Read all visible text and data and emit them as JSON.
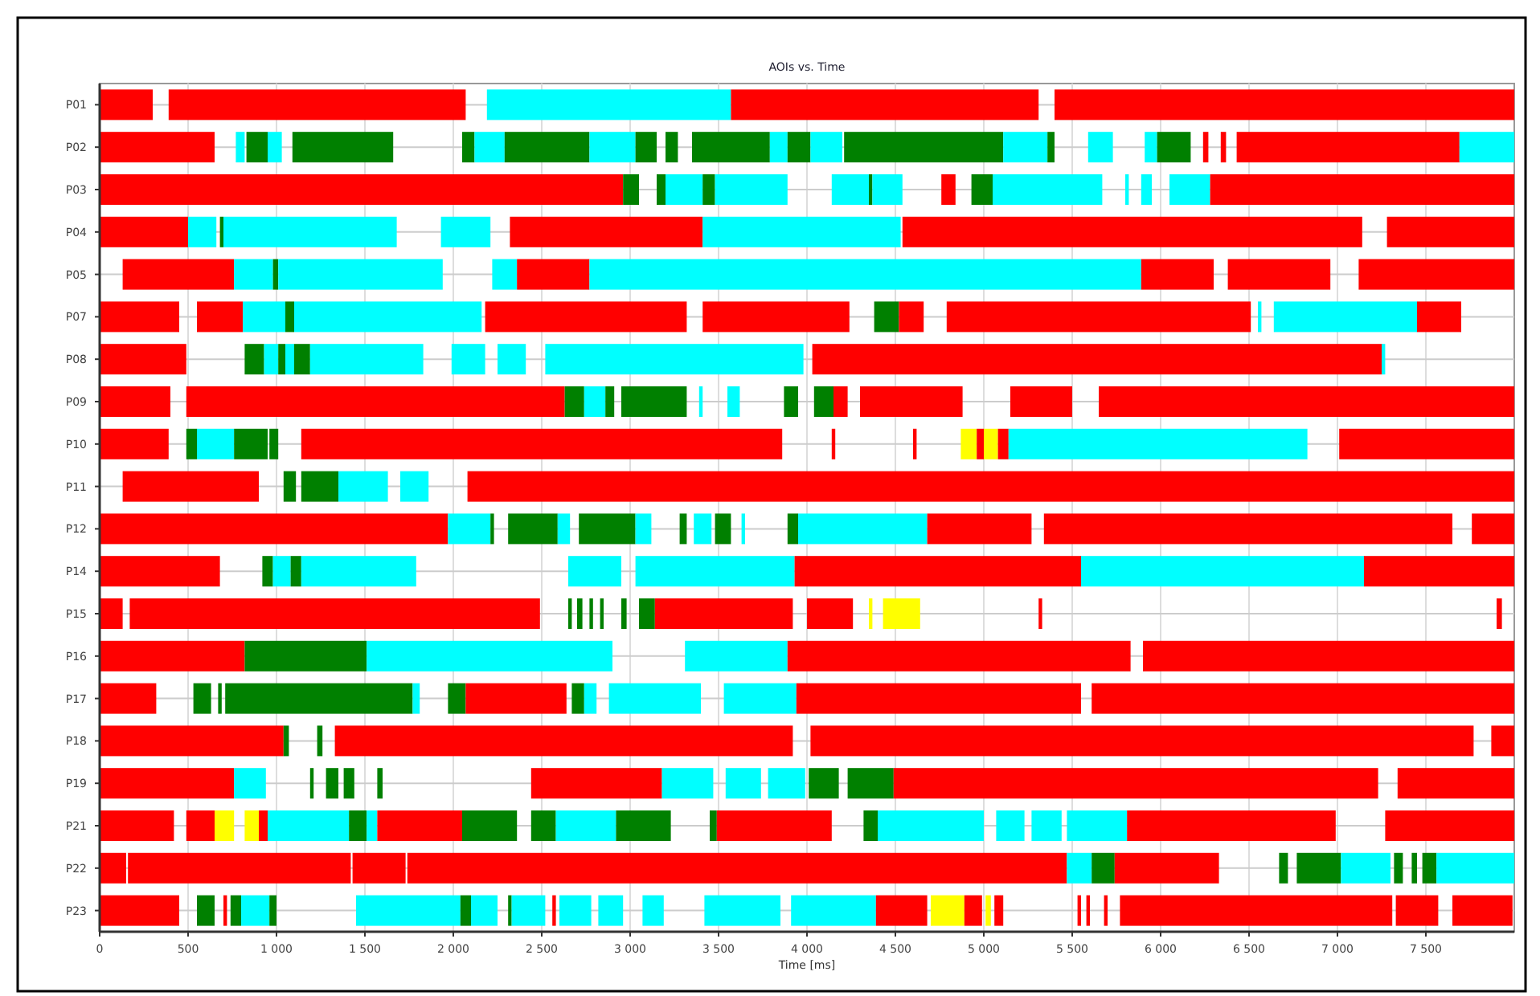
{
  "chart_data": {
    "type": "bar",
    "orientation": "horizontal",
    "title": "AOIs vs. Time",
    "xlabel": "Time [ms]",
    "grid": true,
    "xlim": [
      0,
      8000
    ],
    "xticks": [
      0,
      500,
      {
        "value": 1000,
        "label": "1 000"
      },
      {
        "value": 1500,
        "label": "1 500"
      },
      {
        "value": 2000,
        "label": "2 000"
      },
      {
        "value": 2500,
        "label": "2 500"
      },
      {
        "value": 3000,
        "label": "3 000"
      },
      {
        "value": 3500,
        "label": "3 500"
      },
      {
        "value": 4000,
        "label": "4 000"
      },
      {
        "value": 4500,
        "label": "4 500"
      },
      {
        "value": 5000,
        "label": "5 000"
      },
      {
        "value": 5500,
        "label": "5 500"
      },
      {
        "value": 6000,
        "label": "6 000"
      },
      {
        "value": 6500,
        "label": "6 500"
      },
      {
        "value": 7000,
        "label": "7 000"
      },
      {
        "value": 7500,
        "label": "7 500"
      }
    ],
    "categories": [
      "P01",
      "P02",
      "P03",
      "P04",
      "P05",
      "P07",
      "P08",
      "P09",
      "P10",
      "P11",
      "P12",
      "P14",
      "P15",
      "P16",
      "P17",
      "P18",
      "P19",
      "P21",
      "P22",
      "P23"
    ],
    "series": [
      {
        "base": [
          0,
          0,
          0,
          0,
          130,
          0,
          0,
          0,
          0,
          130,
          0,
          0,
          0,
          0,
          0,
          0,
          0,
          0,
          0,
          0
        ],
        "values": [
          300,
          650,
          2960,
          500,
          630,
          450,
          490,
          400,
          390,
          770,
          1970,
          680,
          130,
          820,
          320,
          1040,
          760,
          420,
          150,
          450
        ],
        "colors": [
          "#ff0000",
          "#ff0000",
          "#ff0000",
          "#ff0000",
          "#ff0000",
          "#ff0000",
          "#ff0000",
          "#ff0000",
          "#ff0000",
          "#ff0000",
          "#ff0000",
          "#ff0000",
          "#ff0000",
          "#ff0000",
          "#ff0000",
          "#ff0000",
          "#ff0000",
          "#ff0000",
          "#ff0000",
          "#ff0000"
        ]
      },
      {
        "base": [
          390,
          770,
          2960,
          500,
          760,
          550,
          820,
          490,
          490,
          1040,
          1970,
          920,
          170,
          820,
          530,
          1040,
          760,
          490,
          160,
          550
        ],
        "values": [
          1680,
          50,
          90,
          160,
          220,
          260,
          110,
          2140,
          60,
          70,
          240,
          60,
          2320,
          690,
          100,
          30,
          180,
          160,
          1260,
          100
        ],
        "colors": [
          "#ff0000",
          "#00ffff",
          "#008000",
          "#00ffff",
          "#00ffff",
          "#ff0000",
          "#008000",
          "#ff0000",
          "#008000",
          "#008000",
          "#00ffff",
          "#008000",
          "#ff0000",
          "#008000",
          "#008000",
          "#008000",
          "#00ffff",
          "#ff0000",
          "#ff0000",
          "#008000"
        ]
      },
      {
        "base": [
          2190,
          830,
          3150,
          680,
          980,
          810,
          930,
          2630,
          550,
          1140,
          2210,
          980,
          2650,
          1510,
          670,
          1230,
          1190,
          650,
          1430,
          700
        ],
        "values": [
          1380,
          120,
          50,
          20,
          30,
          240,
          80,
          110,
          210,
          210,
          20,
          100,
          20,
          1390,
          20,
          30,
          20,
          110,
          300,
          20
        ],
        "colors": [
          "#00ffff",
          "#008000",
          "#008000",
          "#008000",
          "#008000",
          "#00ffff",
          "#00ffff",
          "#008000",
          "#00ffff",
          "#008000",
          "#008000",
          "#00ffff",
          "#008000",
          "#00ffff",
          "#008000",
          "#008000",
          "#008000",
          "#ffff00",
          "#ff0000",
          "#ff0000"
        ]
      },
      {
        "base": [
          3570,
          950,
          3200,
          700,
          1010,
          1050,
          1010,
          2740,
          760,
          1350,
          2310,
          1080,
          2700,
          3310,
          710,
          1330,
          1280,
          820,
          1740,
          740
        ],
        "values": [
          1740,
          80,
          210,
          980,
          930,
          50,
          40,
          120,
          190,
          280,
          280,
          60,
          30,
          580,
          1060,
          2590,
          70,
          80,
          3730,
          60
        ],
        "colors": [
          "#ff0000",
          "#00ffff",
          "#00ffff",
          "#00ffff",
          "#00ffff",
          "#008000",
          "#008000",
          "#00ffff",
          "#008000",
          "#00ffff",
          "#008000",
          "#008000",
          "#008000",
          "#00ffff",
          "#008000",
          "#ff0000",
          "#008000",
          "#ffff00",
          "#ff0000",
          "#008000"
        ]
      },
      {
        "base": [
          5400,
          1090,
          3410,
          1930,
          2220,
          1100,
          1050,
          2860,
          960,
          1700,
          2590,
          1140,
          2770,
          3890,
          1770,
          4020,
          1380,
          900,
          5470,
          800
        ],
        "values": [
          2600,
          570,
          70,
          280,
          140,
          1060,
          50,
          50,
          50,
          160,
          70,
          650,
          20,
          1940,
          40,
          3750,
          60,
          50,
          140,
          160
        ],
        "colors": [
          "#ff0000",
          "#008000",
          "#008000",
          "#00ffff",
          "#00ffff",
          "#00ffff",
          "#00ffff",
          "#008000",
          "#008000",
          "#00ffff",
          "#00ffff",
          "#00ffff",
          "#008000",
          "#ff0000",
          "#00ffff",
          "#ff0000",
          "#008000",
          "#ff0000",
          "#00ffff",
          "#00ffff"
        ]
      },
      {
        "base": [
          null,
          2050,
          3480,
          2320,
          2360,
          2180,
          1100,
          2950,
          1140,
          2080,
          2710,
          2650,
          2830,
          5900,
          1970,
          7870,
          1570,
          950,
          5610,
          960
        ],
        "values": [
          null,
          70,
          410,
          1090,
          410,
          1140,
          90,
          370,
          2720,
          5920,
          320,
          300,
          20,
          2100,
          100,
          130,
          30,
          460,
          130,
          40
        ],
        "colors": [
          null,
          "#008000",
          "#00ffff",
          "#ff0000",
          "#ff0000",
          "#ff0000",
          "#008000",
          "#008000",
          "#ff0000",
          "#ff0000",
          "#008000",
          "#00ffff",
          "#008000",
          "#ff0000",
          "#008000",
          "#ff0000",
          "#008000",
          "#00ffff",
          "#008000",
          "#008000"
        ]
      },
      {
        "base": [
          null,
          2120,
          4140,
          3410,
          2770,
          3410,
          1190,
          3390,
          4140,
          null,
          3030,
          3030,
          2950,
          null,
          2070,
          null,
          2440,
          1410,
          5740,
          1450
        ],
        "values": [
          null,
          170,
          210,
          1120,
          3120,
          830,
          640,
          20,
          20,
          null,
          90,
          900,
          30,
          null,
          570,
          null,
          740,
          100,
          590,
          590
        ],
        "colors": [
          null,
          "#00ffff",
          "#00ffff",
          "#00ffff",
          "#00ffff",
          "#ff0000",
          "#00ffff",
          "#00ffff",
          "#ff0000",
          null,
          "#00ffff",
          "#00ffff",
          "#008000",
          null,
          "#ff0000",
          null,
          "#ff0000",
          "#008000",
          "#ff0000",
          "#00ffff"
        ]
      },
      {
        "base": [
          null,
          2290,
          4350,
          4540,
          5890,
          4380,
          1990,
          3550,
          4600,
          null,
          3280,
          3930,
          3050,
          null,
          2670,
          null,
          3180,
          1510,
          6670,
          2040
        ],
        "values": [
          null,
          480,
          20,
          2600,
          410,
          140,
          190,
          70,
          20,
          null,
          40,
          1620,
          90,
          null,
          70,
          null,
          290,
          60,
          50,
          60
        ],
        "colors": [
          null,
          "#008000",
          "#008000",
          "#ff0000",
          "#ff0000",
          "#008000",
          "#00ffff",
          "#00ffff",
          "#ff0000",
          null,
          "#008000",
          "#ff0000",
          "#008000",
          null,
          "#008000",
          null,
          "#00ffff",
          "#00ffff",
          "#008000",
          "#008000"
        ]
      },
      {
        "base": [
          null,
          2770,
          4370,
          7280,
          6380,
          4520,
          2250,
          3870,
          4870,
          null,
          3360,
          5550,
          3140,
          null,
          2740,
          null,
          3540,
          1570,
          6770,
          2100
        ],
        "values": [
          null,
          260,
          170,
          720,
          580,
          140,
          160,
          80,
          90,
          null,
          100,
          1600,
          780,
          null,
          70,
          null,
          200,
          480,
          250,
          150
        ],
        "colors": [
          null,
          "#00ffff",
          "#00ffff",
          "#ff0000",
          "#ff0000",
          "#ff0000",
          "#00ffff",
          "#008000",
          "#ffff00",
          null,
          "#00ffff",
          "#00ffff",
          "#ff0000",
          null,
          "#00ffff",
          null,
          "#00ffff",
          "#ff0000",
          "#008000",
          "#00ffff"
        ]
      },
      {
        "base": [
          null,
          3030,
          4760,
          null,
          7120,
          4790,
          2520,
          4040,
          4960,
          null,
          3480,
          7150,
          4000,
          null,
          2880,
          null,
          3780,
          2050,
          7020,
          2310
        ],
        "values": [
          null,
          120,
          80,
          null,
          880,
          1720,
          1460,
          110,
          40,
          null,
          90,
          850,
          260,
          null,
          520,
          null,
          210,
          310,
          280,
          20
        ],
        "colors": [
          null,
          "#008000",
          "#ff0000",
          null,
          "#ff0000",
          "#ff0000",
          "#00ffff",
          "#008000",
          "#ff0000",
          null,
          "#008000",
          "#ff0000",
          "#ff0000",
          null,
          "#00ffff",
          null,
          "#00ffff",
          "#008000",
          "#00ffff",
          "#008000"
        ]
      },
      {
        "base": [
          null,
          3200,
          4930,
          null,
          null,
          6550,
          4030,
          4150,
          5000,
          null,
          3630,
          null,
          4350,
          null,
          3530,
          null,
          4010,
          2440,
          7320,
          2330
        ],
        "values": [
          null,
          70,
          120,
          null,
          null,
          20,
          3220,
          80,
          80,
          null,
          20,
          null,
          20,
          null,
          410,
          null,
          170,
          140,
          50,
          190
        ],
        "colors": [
          null,
          "#008000",
          "#008000",
          null,
          null,
          "#00ffff",
          "#ff0000",
          "#ff0000",
          "#ffff00",
          null,
          "#00ffff",
          null,
          "#ffff00",
          null,
          "#00ffff",
          null,
          "#008000",
          "#008000",
          "#008000",
          "#00ffff"
        ]
      },
      {
        "base": [
          null,
          3350,
          5050,
          null,
          null,
          6640,
          7250,
          4300,
          5080,
          null,
          3890,
          null,
          4430,
          null,
          3940,
          null,
          4230,
          2580,
          7420,
          2560
        ],
        "values": [
          null,
          440,
          620,
          null,
          null,
          810,
          20,
          580,
          60,
          null,
          60,
          null,
          210,
          null,
          1610,
          null,
          260,
          340,
          30,
          20
        ],
        "colors": [
          null,
          "#008000",
          "#00ffff",
          null,
          null,
          "#00ffff",
          "#00ffff",
          "#ff0000",
          "#ff0000",
          null,
          "#008000",
          null,
          "#ffff00",
          null,
          "#ff0000",
          null,
          "#008000",
          "#00ffff",
          "#008000",
          "#ff0000"
        ]
      },
      {
        "base": [
          null,
          3790,
          5800,
          null,
          null,
          7450,
          null,
          5150,
          5140,
          null,
          3950,
          null,
          5310,
          null,
          5610,
          null,
          4490,
          2920,
          7480,
          2600
        ],
        "values": [
          null,
          100,
          20,
          null,
          null,
          250,
          null,
          350,
          1690,
          null,
          730,
          null,
          20,
          null,
          2390,
          null,
          2740,
          310,
          80,
          180
        ],
        "colors": [
          null,
          "#00ffff",
          "#00ffff",
          null,
          null,
          "#ff0000",
          null,
          "#ff0000",
          "#00ffff",
          null,
          "#00ffff",
          null,
          "#ff0000",
          null,
          "#ff0000",
          null,
          "#ff0000",
          "#008000",
          "#008000",
          "#00ffff"
        ]
      },
      {
        "base": [
          null,
          3890,
          5890,
          null,
          null,
          null,
          null,
          5650,
          7010,
          null,
          4680,
          null,
          7900,
          null,
          null,
          null,
          7340,
          3450,
          7560,
          2820
        ],
        "values": [
          null,
          130,
          60,
          null,
          null,
          null,
          null,
          2350,
          990,
          null,
          590,
          null,
          30,
          null,
          null,
          null,
          660,
          40,
          440,
          140
        ],
        "colors": [
          null,
          "#008000",
          "#00ffff",
          null,
          null,
          null,
          null,
          "#ff0000",
          "#ff0000",
          null,
          "#ff0000",
          null,
          "#ff0000",
          null,
          null,
          null,
          "#ff0000",
          "#008000",
          "#00ffff",
          "#00ffff"
        ]
      },
      {
        "base": [
          null,
          4020,
          6050,
          null,
          null,
          null,
          null,
          null,
          null,
          null,
          5340,
          null,
          null,
          null,
          null,
          null,
          null,
          3490,
          null,
          3070
        ],
        "values": [
          null,
          180,
          230,
          null,
          null,
          null,
          null,
          null,
          null,
          null,
          2310,
          null,
          null,
          null,
          null,
          null,
          null,
          650,
          null,
          120
        ],
        "colors": [
          null,
          "#00ffff",
          "#00ffff",
          null,
          null,
          null,
          null,
          null,
          null,
          null,
          "#ff0000",
          null,
          null,
          null,
          null,
          null,
          null,
          "#ff0000",
          null,
          "#00ffff"
        ]
      },
      {
        "base": [
          null,
          4210,
          6280,
          null,
          null,
          null,
          null,
          null,
          null,
          null,
          7760,
          null,
          null,
          null,
          null,
          null,
          null,
          4320,
          null,
          3420
        ],
        "values": [
          null,
          900,
          1720,
          null,
          null,
          null,
          null,
          null,
          null,
          null,
          240,
          null,
          null,
          null,
          null,
          null,
          null,
          80,
          null,
          430
        ],
        "colors": [
          null,
          "#008000",
          "#ff0000",
          null,
          null,
          null,
          null,
          null,
          null,
          null,
          "#ff0000",
          null,
          null,
          null,
          null,
          null,
          null,
          "#008000",
          null,
          "#00ffff"
        ]
      },
      {
        "base": [
          null,
          5110,
          null,
          null,
          null,
          null,
          null,
          null,
          null,
          null,
          null,
          null,
          null,
          null,
          null,
          null,
          null,
          4400,
          null,
          3910
        ],
        "values": [
          null,
          250,
          null,
          null,
          null,
          null,
          null,
          null,
          null,
          null,
          null,
          null,
          null,
          null,
          null,
          null,
          null,
          600,
          null,
          480
        ],
        "colors": [
          null,
          "#00ffff",
          null,
          null,
          null,
          null,
          null,
          null,
          null,
          null,
          null,
          null,
          null,
          null,
          null,
          null,
          null,
          "#00ffff",
          null,
          "#00ffff"
        ]
      },
      {
        "base": [
          null,
          5360,
          null,
          null,
          null,
          null,
          null,
          null,
          null,
          null,
          null,
          null,
          null,
          null,
          null,
          null,
          null,
          5070,
          null,
          4390
        ],
        "values": [
          null,
          40,
          null,
          null,
          null,
          null,
          null,
          null,
          null,
          null,
          null,
          null,
          null,
          null,
          null,
          null,
          null,
          160,
          null,
          290
        ],
        "colors": [
          null,
          "#008000",
          null,
          null,
          null,
          null,
          null,
          null,
          null,
          null,
          null,
          null,
          null,
          null,
          null,
          null,
          null,
          "#00ffff",
          null,
          "#ff0000"
        ]
      },
      {
        "base": [
          null,
          5590,
          null,
          null,
          null,
          null,
          null,
          null,
          null,
          null,
          null,
          null,
          null,
          null,
          null,
          null,
          null,
          5270,
          null,
          4700
        ],
        "values": [
          null,
          140,
          null,
          null,
          null,
          null,
          null,
          null,
          null,
          null,
          null,
          null,
          null,
          null,
          null,
          null,
          null,
          170,
          null,
          190
        ],
        "colors": [
          null,
          "#00ffff",
          null,
          null,
          null,
          null,
          null,
          null,
          null,
          null,
          null,
          null,
          null,
          null,
          null,
          null,
          null,
          "#00ffff",
          null,
          "#ffff00"
        ]
      },
      {
        "base": [
          null,
          5910,
          null,
          null,
          null,
          null,
          null,
          null,
          null,
          null,
          null,
          null,
          null,
          null,
          null,
          null,
          null,
          5470,
          null,
          4890
        ],
        "values": [
          null,
          70,
          null,
          null,
          null,
          null,
          null,
          null,
          null,
          null,
          null,
          null,
          null,
          null,
          null,
          null,
          null,
          340,
          null,
          100
        ],
        "colors": [
          null,
          "#00ffff",
          null,
          null,
          null,
          null,
          null,
          null,
          null,
          null,
          null,
          null,
          null,
          null,
          null,
          null,
          null,
          "#00ffff",
          null,
          "#ff0000"
        ]
      },
      {
        "base": [
          null,
          5980,
          null,
          null,
          null,
          null,
          null,
          null,
          null,
          null,
          null,
          null,
          null,
          null,
          null,
          null,
          null,
          5810,
          null,
          5010
        ],
        "values": [
          null,
          190,
          null,
          null,
          null,
          null,
          null,
          null,
          null,
          null,
          null,
          null,
          null,
          null,
          null,
          null,
          null,
          1180,
          null,
          30
        ],
        "colors": [
          null,
          "#008000",
          null,
          null,
          null,
          null,
          null,
          null,
          null,
          null,
          null,
          null,
          null,
          null,
          null,
          null,
          null,
          "#ff0000",
          null,
          "#ffff00"
        ]
      },
      {
        "base": [
          null,
          6240,
          null,
          null,
          null,
          null,
          null,
          null,
          null,
          null,
          null,
          null,
          null,
          null,
          null,
          null,
          null,
          7270,
          null,
          5060
        ],
        "values": [
          null,
          30,
          null,
          null,
          null,
          null,
          null,
          null,
          null,
          null,
          null,
          null,
          null,
          null,
          null,
          null,
          null,
          730,
          null,
          50
        ],
        "colors": [
          null,
          "#ff0000",
          null,
          null,
          null,
          null,
          null,
          null,
          null,
          null,
          null,
          null,
          null,
          null,
          null,
          null,
          null,
          "#ff0000",
          null,
          "#ff0000"
        ]
      },
      {
        "base": [
          null,
          6340,
          null,
          null,
          null,
          null,
          null,
          null,
          null,
          null,
          null,
          null,
          null,
          null,
          null,
          null,
          null,
          null,
          null,
          5530
        ],
        "values": [
          null,
          30,
          null,
          null,
          null,
          null,
          null,
          null,
          null,
          null,
          null,
          null,
          null,
          null,
          null,
          null,
          null,
          null,
          null,
          20
        ],
        "colors": [
          null,
          "#ff0000",
          null,
          null,
          null,
          null,
          null,
          null,
          null,
          null,
          null,
          null,
          null,
          null,
          null,
          null,
          null,
          null,
          null,
          "#ff0000"
        ]
      },
      {
        "base": [
          null,
          6430,
          null,
          null,
          null,
          null,
          null,
          null,
          null,
          null,
          null,
          null,
          null,
          null,
          null,
          null,
          null,
          null,
          null,
          5580
        ],
        "values": [
          null,
          1260,
          null,
          null,
          null,
          null,
          null,
          null,
          null,
          null,
          null,
          null,
          null,
          null,
          null,
          null,
          null,
          null,
          null,
          20
        ],
        "colors": [
          null,
          "#ff0000",
          null,
          null,
          null,
          null,
          null,
          null,
          null,
          null,
          null,
          null,
          null,
          null,
          null,
          null,
          null,
          null,
          null,
          "#ff0000"
        ]
      },
      {
        "base": [
          null,
          7690,
          null,
          null,
          null,
          null,
          null,
          null,
          null,
          null,
          null,
          null,
          null,
          null,
          null,
          null,
          null,
          null,
          null,
          5680
        ],
        "values": [
          null,
          310,
          null,
          null,
          null,
          null,
          null,
          null,
          null,
          null,
          null,
          null,
          null,
          null,
          null,
          null,
          null,
          null,
          null,
          20
        ],
        "colors": [
          null,
          "#00ffff",
          null,
          null,
          null,
          null,
          null,
          null,
          null,
          null,
          null,
          null,
          null,
          null,
          null,
          null,
          null,
          null,
          null,
          "#ff0000"
        ]
      },
      {
        "base": [
          null,
          null,
          null,
          null,
          null,
          null,
          null,
          null,
          null,
          null,
          null,
          null,
          null,
          null,
          null,
          null,
          null,
          null,
          null,
          5770
        ],
        "values": [
          null,
          null,
          null,
          null,
          null,
          null,
          null,
          null,
          null,
          null,
          null,
          null,
          null,
          null,
          null,
          null,
          null,
          null,
          null,
          1540
        ],
        "colors": [
          null,
          null,
          null,
          null,
          null,
          null,
          null,
          null,
          null,
          null,
          null,
          null,
          null,
          null,
          null,
          null,
          null,
          null,
          null,
          "#ff0000"
        ]
      },
      {
        "base": [
          null,
          null,
          null,
          null,
          null,
          null,
          null,
          null,
          null,
          null,
          null,
          null,
          null,
          null,
          null,
          null,
          null,
          null,
          null,
          7330
        ],
        "values": [
          null,
          null,
          null,
          null,
          null,
          null,
          null,
          null,
          null,
          null,
          null,
          null,
          null,
          null,
          null,
          null,
          null,
          null,
          null,
          240
        ],
        "colors": [
          null,
          null,
          null,
          null,
          null,
          null,
          null,
          null,
          null,
          null,
          null,
          null,
          null,
          null,
          null,
          null,
          null,
          null,
          null,
          "#ff0000"
        ]
      },
      {
        "base": [
          null,
          null,
          null,
          null,
          null,
          null,
          null,
          null,
          null,
          null,
          null,
          null,
          null,
          null,
          null,
          null,
          null,
          null,
          null,
          7650
        ],
        "values": [
          null,
          null,
          null,
          null,
          null,
          null,
          null,
          null,
          null,
          null,
          null,
          null,
          null,
          null,
          null,
          null,
          null,
          null,
          null,
          340
        ],
        "colors": [
          null,
          null,
          null,
          null,
          null,
          null,
          null,
          null,
          null,
          null,
          null,
          null,
          null,
          null,
          null,
          null,
          null,
          null,
          null,
          "#ff0000"
        ]
      }
    ]
  }
}
